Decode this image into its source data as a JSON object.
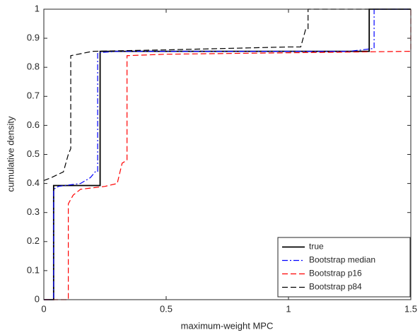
{
  "chart_data": {
    "type": "line",
    "xlabel": "maximum-weight MPC",
    "ylabel": "cumulative density",
    "xlim": [
      0,
      1.5
    ],
    "ylim": [
      0,
      1
    ],
    "xticks": [
      0,
      0.5,
      1,
      1.5
    ],
    "yticks": [
      0,
      0.1,
      0.2,
      0.3,
      0.4,
      0.5,
      0.6,
      0.7,
      0.8,
      0.9,
      1
    ],
    "legend": "lower right",
    "series": [
      {
        "name": "true",
        "color": "#000000",
        "style": "solid",
        "x": [
          0,
          0.04,
          0.04,
          0.23,
          0.23,
          1.33,
          1.33,
          1.5
        ],
        "values": [
          0,
          0,
          0.393,
          0.393,
          0.855,
          0.855,
          1,
          1
        ]
      },
      {
        "name": "Bootstrap median",
        "color": "#0000ff",
        "style": "dashdot",
        "x": [
          0,
          0.04,
          0.04,
          0.06,
          0.15,
          0.19,
          0.21,
          0.22,
          0.22,
          0.3,
          1.25,
          1.3,
          1.35,
          1.35,
          1.5
        ],
        "values": [
          0,
          0,
          0.38,
          0.39,
          0.4,
          0.42,
          0.44,
          0.44,
          0.85,
          0.855,
          0.855,
          0.86,
          0.865,
          1,
          1
        ]
      },
      {
        "name": "Bootstrap p16",
        "color": "#ff0000",
        "style": "dash",
        "x": [
          0,
          0.1,
          0.1,
          0.12,
          0.15,
          0.25,
          0.3,
          0.32,
          0.34,
          0.34,
          0.5,
          1.0,
          1.5,
          1.5
        ],
        "values": [
          0,
          0,
          0.33,
          0.36,
          0.38,
          0.39,
          0.4,
          0.47,
          0.48,
          0.84,
          0.845,
          0.85,
          0.855,
          1
        ]
      },
      {
        "name": "Bootstrap p84",
        "color": "#000000",
        "style": "dash",
        "x": [
          0,
          0.03,
          0.08,
          0.1,
          0.11,
          0.11,
          0.2,
          0.5,
          1.0,
          1.05,
          1.07,
          1.08,
          1.08,
          1.5
        ],
        "values": [
          0.41,
          0.42,
          0.44,
          0.5,
          0.52,
          0.84,
          0.855,
          0.86,
          0.87,
          0.87,
          0.93,
          0.93,
          1,
          1
        ]
      }
    ]
  }
}
